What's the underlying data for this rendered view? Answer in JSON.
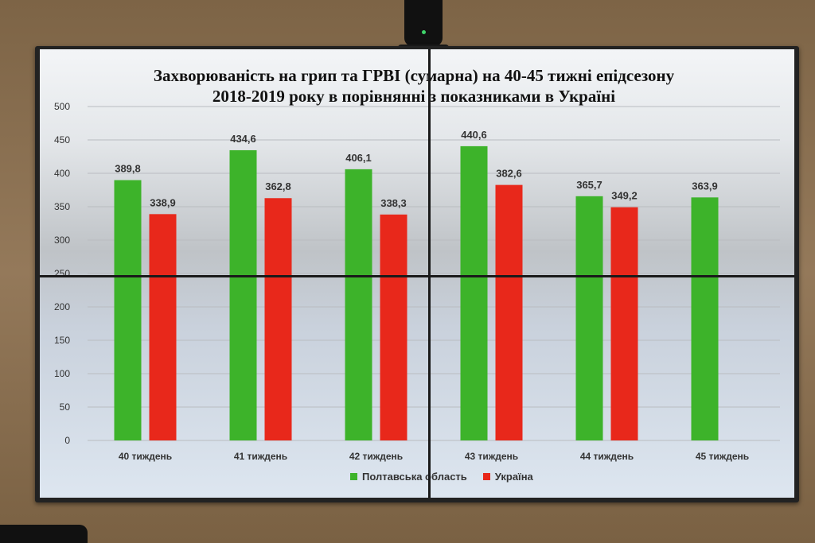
{
  "chart_data": {
    "type": "bar",
    "title_lines": [
      "Захворюваність на грип та ГРВІ (сумарна) на 40-45 тижні епідсезону",
      "2018-2019 року в порівнянні з показниками в Україні"
    ],
    "categories": [
      "40 тиждень",
      "41 тиждень",
      "42 тиждень",
      "43 тиждень",
      "44 тиждень",
      "45 тиждень"
    ],
    "series": [
      {
        "name": "Полтавська область",
        "color": "#3db32a",
        "values": [
          389.8,
          434.6,
          406.1,
          440.6,
          365.7,
          363.9
        ],
        "labels": [
          "389,8",
          "434,6",
          "406,1",
          "440,6",
          "365,7",
          "363,9"
        ]
      },
      {
        "name": "Україна",
        "color": "#e8281b",
        "values": [
          338.9,
          362.8,
          338.3,
          382.6,
          349.2,
          null
        ],
        "labels": [
          "338,9",
          "362,8",
          "338,3",
          "382,6",
          "349,2",
          ""
        ]
      }
    ],
    "yticks": [
      "0",
      "50",
      "100",
      "150",
      "200",
      "250",
      "300",
      "350",
      "400",
      "450",
      "500"
    ],
    "ylim": [
      0,
      500
    ],
    "grid": true,
    "legend_position": "bottom"
  }
}
